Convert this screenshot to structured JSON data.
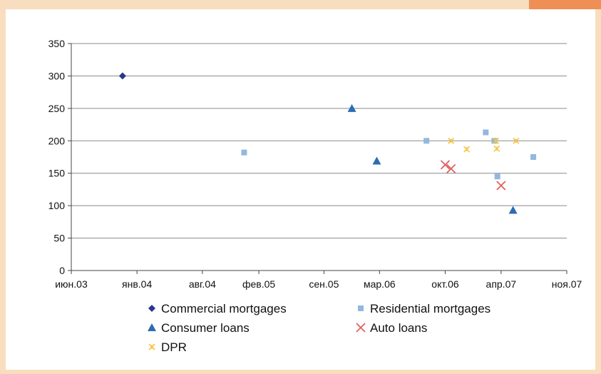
{
  "chart_data": {
    "type": "scatter",
    "title": "",
    "xlabel": "",
    "ylabel": "",
    "ylim": [
      0,
      350
    ],
    "yticks": [
      0,
      50,
      100,
      150,
      200,
      250,
      300,
      350
    ],
    "xlim": [
      "2003-06-01",
      "2007-11-01"
    ],
    "xticks": [
      {
        "date": "2003-06-01",
        "label": "июн.03"
      },
      {
        "date": "2004-01-01",
        "label": "янв.04"
      },
      {
        "date": "2004-08-01",
        "label": "авг.04"
      },
      {
        "date": "2005-02-01",
        "label": "фев.05"
      },
      {
        "date": "2005-09-01",
        "label": "сен.05"
      },
      {
        "date": "2006-03-01",
        "label": "мар.06"
      },
      {
        "date": "2006-10-01",
        "label": "окт.06"
      },
      {
        "date": "2007-04-01",
        "label": "апр.07"
      },
      {
        "date": "2007-11-01",
        "label": "ноя.07"
      }
    ],
    "grid": "horizontal",
    "legend_position": "bottom",
    "series": [
      {
        "name": "Commercial mortgages",
        "marker": "diamond",
        "color": "#2b3590",
        "points": [
          {
            "x": "2003-11-15",
            "y": 300
          }
        ]
      },
      {
        "name": "Residential mortgages",
        "marker": "square",
        "color": "#93b8df",
        "points": [
          {
            "x": "2004-12-15",
            "y": 182
          },
          {
            "x": "2006-08-01",
            "y": 200
          },
          {
            "x": "2007-02-10",
            "y": 213
          },
          {
            "x": "2007-03-10",
            "y": 200
          },
          {
            "x": "2007-03-20",
            "y": 145
          },
          {
            "x": "2007-07-15",
            "y": 175
          }
        ]
      },
      {
        "name": "Consumer loans",
        "marker": "triangle",
        "color": "#2c6cb3",
        "points": [
          {
            "x": "2005-12-01",
            "y": 250
          },
          {
            "x": "2006-02-20",
            "y": 169
          },
          {
            "x": "2007-05-10",
            "y": 93
          }
        ]
      },
      {
        "name": "Auto loans",
        "marker": "x",
        "color": "#e06060",
        "points": [
          {
            "x": "2006-10-01",
            "y": 163
          },
          {
            "x": "2006-10-20",
            "y": 157
          },
          {
            "x": "2007-04-01",
            "y": 131
          }
        ]
      },
      {
        "name": "DPR",
        "marker": "star",
        "color": "#f5c542",
        "points": [
          {
            "x": "2006-10-20",
            "y": 200
          },
          {
            "x": "2006-12-10",
            "y": 187
          },
          {
            "x": "2007-03-15",
            "y": 200
          },
          {
            "x": "2007-03-18",
            "y": 188
          },
          {
            "x": "2007-05-20",
            "y": 200
          }
        ]
      }
    ]
  }
}
